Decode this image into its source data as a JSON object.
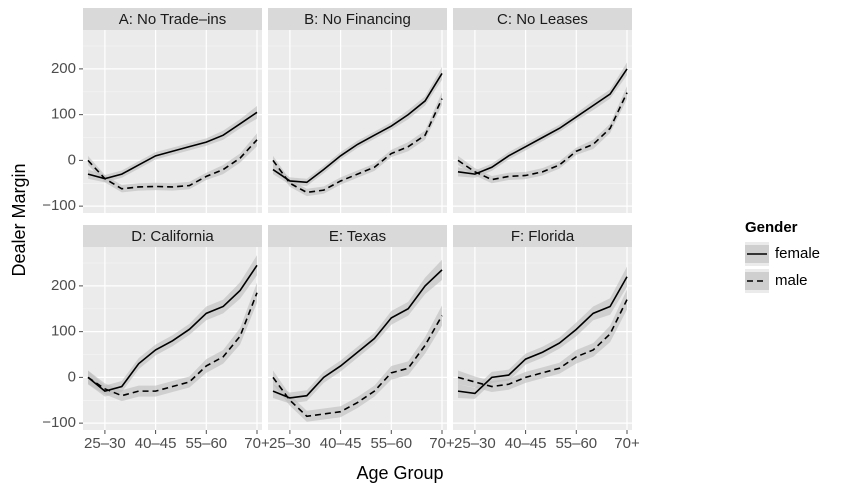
{
  "chart_data": {
    "type": "line",
    "x_label": "Age Group",
    "y_label": "Dealer Margin",
    "legend_title": "Gender",
    "legend_position": "right",
    "grid": true,
    "categories": [
      null,
      "25–30",
      null,
      null,
      "40–45",
      null,
      null,
      "55–60",
      null,
      null,
      "70+"
    ],
    "ylim": [
      -115,
      285
    ],
    "yticks": [
      {
        "value": -100,
        "label": "−100"
      },
      0,
      100,
      200
    ],
    "y_minor_ticks": [
      -50,
      50,
      150,
      250
    ],
    "series": [
      {
        "name": "female",
        "color": "#000000",
        "linestyle": "solid",
        "band_color": "#bdbdbd"
      },
      {
        "name": "male",
        "color": "#000000",
        "linestyle": "dashed",
        "band_color": "#bdbdbd"
      }
    ],
    "facets": [
      {
        "title": "A: No Trade–ins",
        "series": [
          {
            "values": [
              -30,
              -40,
              -30,
              -10,
              10,
              20,
              30,
              40,
              55,
              80,
              105
            ],
            "errors": [
              10,
              8,
              8,
              8,
              8,
              8,
              8,
              8,
              10,
              10,
              14
            ]
          },
          {
            "values": [
              0,
              -40,
              -62,
              -58,
              -57,
              -58,
              -55,
              -35,
              -20,
              5,
              45
            ],
            "errors": [
              10,
              8,
              8,
              8,
              8,
              8,
              8,
              8,
              10,
              10,
              14
            ]
          }
        ]
      },
      {
        "title": "B: No Financing",
        "series": [
          {
            "values": [
              -20,
              -45,
              -48,
              -20,
              10,
              35,
              55,
              75,
              100,
              130,
              190
            ],
            "errors": [
              10,
              8,
              8,
              8,
              8,
              8,
              8,
              8,
              10,
              10,
              14
            ]
          },
          {
            "values": [
              0,
              -50,
              -70,
              -65,
              -45,
              -30,
              -15,
              15,
              30,
              55,
              135
            ],
            "errors": [
              10,
              8,
              8,
              8,
              8,
              8,
              8,
              8,
              10,
              10,
              14
            ]
          }
        ]
      },
      {
        "title": "C: No Leases",
        "series": [
          {
            "values": [
              -25,
              -30,
              -15,
              10,
              30,
              50,
              70,
              95,
              120,
              145,
              200
            ],
            "errors": [
              10,
              8,
              8,
              8,
              8,
              8,
              8,
              8,
              10,
              10,
              14
            ]
          },
          {
            "values": [
              0,
              -25,
              -42,
              -35,
              -33,
              -25,
              -10,
              20,
              35,
              70,
              148
            ],
            "errors": [
              10,
              8,
              8,
              8,
              8,
              8,
              8,
              8,
              10,
              10,
              14
            ]
          }
        ]
      },
      {
        "title": "D: California",
        "series": [
          {
            "values": [
              0,
              -30,
              -20,
              30,
              60,
              80,
              105,
              140,
              155,
              190,
              245
            ],
            "errors": [
              15,
              12,
              12,
              12,
              12,
              12,
              12,
              15,
              15,
              18,
              22
            ]
          },
          {
            "values": [
              0,
              -25,
              -40,
              -30,
              -30,
              -20,
              -10,
              25,
              45,
              90,
              185
            ],
            "errors": [
              15,
              12,
              12,
              12,
              12,
              12,
              12,
              15,
              15,
              18,
              22
            ]
          }
        ]
      },
      {
        "title": "E: Texas",
        "series": [
          {
            "values": [
              -30,
              -45,
              -40,
              0,
              25,
              55,
              85,
              130,
              150,
              200,
              235
            ],
            "errors": [
              15,
              12,
              12,
              12,
              12,
              12,
              12,
              15,
              15,
              18,
              22
            ]
          },
          {
            "values": [
              0,
              -50,
              -85,
              -80,
              -75,
              -55,
              -30,
              10,
              20,
              70,
              135
            ],
            "errors": [
              15,
              12,
              12,
              12,
              12,
              12,
              12,
              15,
              15,
              18,
              22
            ]
          }
        ]
      },
      {
        "title": "F: Florida",
        "series": [
          {
            "values": [
              -30,
              -35,
              0,
              5,
              40,
              55,
              75,
              105,
              140,
              155,
              220
            ],
            "errors": [
              15,
              12,
              12,
              12,
              12,
              12,
              12,
              15,
              15,
              18,
              22
            ]
          },
          {
            "values": [
              0,
              -10,
              -20,
              -15,
              0,
              10,
              20,
              45,
              60,
              95,
              170
            ],
            "errors": [
              15,
              12,
              12,
              12,
              12,
              12,
              12,
              15,
              15,
              18,
              22
            ]
          }
        ]
      }
    ]
  }
}
